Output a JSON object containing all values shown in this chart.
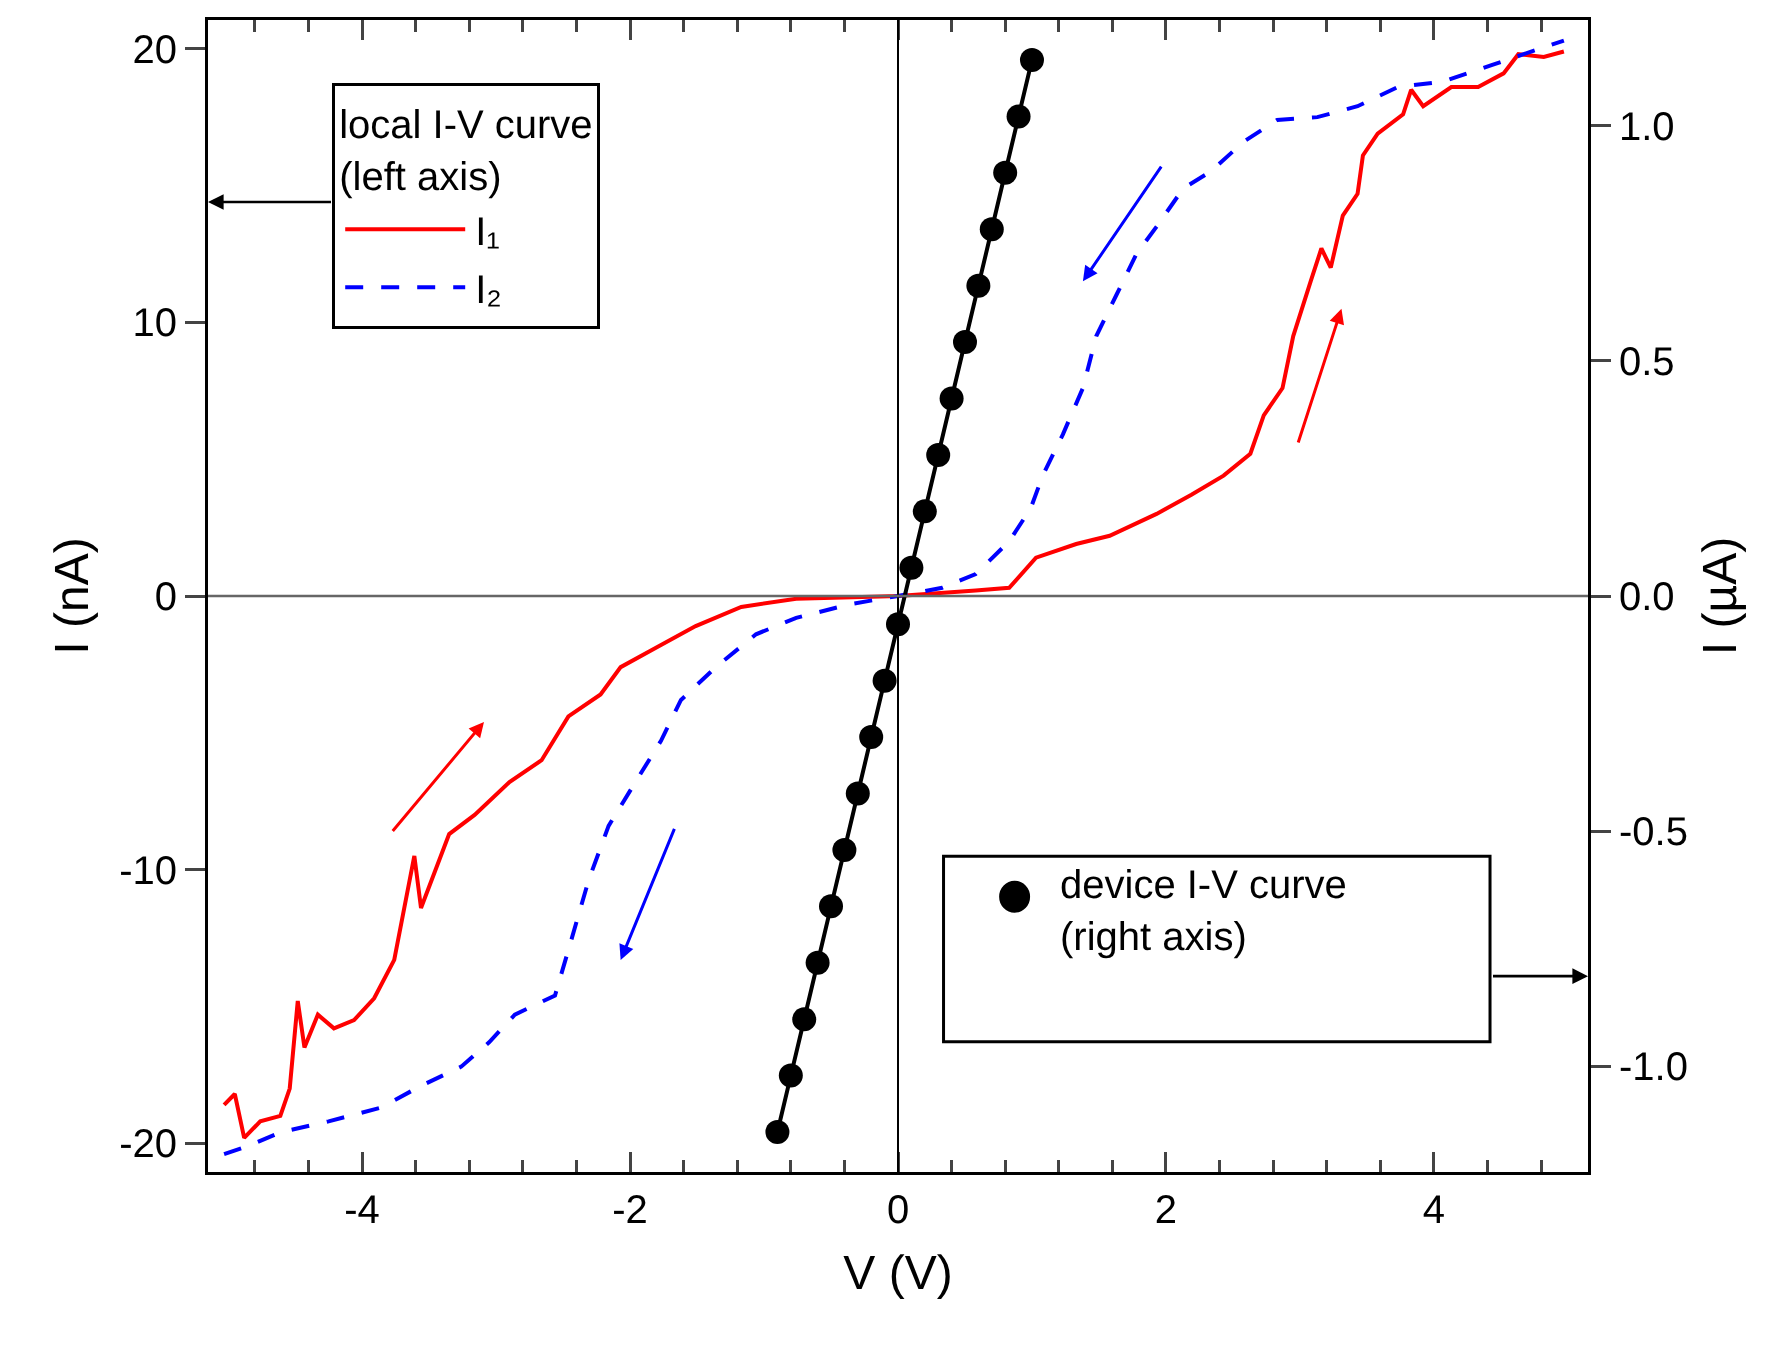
{
  "chart_data": {
    "type": "line",
    "xlabel": "V (V)",
    "ylabel": "I (nA)",
    "y2label": "I (µA)",
    "legend_title": "local I-V curve\n(left axis)",
    "legend": "top left",
    "grid": false,
    "xlim": [
      -5.15,
      5.15
    ],
    "xticks": [
      -4,
      -2,
      0,
      2,
      4
    ],
    "ylim": [
      -21.05,
      21.05
    ],
    "yticks": [
      -20,
      -10,
      0,
      10,
      20
    ],
    "y2lim": [
      -1.225,
      1.225
    ],
    "y2ticks": [
      {
        "value": -1,
        "label": "-1.0"
      },
      -0.5,
      {
        "value": 0,
        "label": "0.0"
      },
      0.5,
      {
        "value": 1,
        "label": "1.0"
      }
    ],
    "ref_lines": [
      {
        "axis": "x",
        "value": 0,
        "color": "#000000"
      },
      {
        "axis": "y",
        "value": 0,
        "color": "#666666"
      }
    ],
    "series": [
      {
        "name": "I₁",
        "color": "#ff0000",
        "line_style": "solid",
        "marker": "none",
        "x": [
          -5.03,
          -4.95,
          -4.88,
          -4.76,
          -4.61,
          -4.54,
          -4.48,
          -4.43,
          -4.33,
          -4.21,
          -4.06,
          -3.91,
          -3.76,
          -3.61,
          -3.56,
          -3.35,
          -3.16,
          -2.9,
          -2.66,
          -2.46,
          -2.22,
          -2.07,
          -1.81,
          -1.51,
          -1.17,
          -0.76,
          -0.27,
          0,
          0.58,
          0.83,
          1.03,
          1.33,
          1.58,
          1.93,
          2.19,
          2.43,
          2.63,
          2.73,
          2.87,
          2.95,
          3.08,
          3.16,
          3.23,
          3.32,
          3.43,
          3.47,
          3.58,
          3.77,
          3.83,
          3.92,
          4.13,
          4.33,
          4.52,
          4.63,
          4.82,
          4.97
        ],
        "values": [
          -18.6,
          -18.2,
          -19.8,
          -19.2,
          -19.0,
          -18.0,
          -14.8,
          -16.5,
          -15.3,
          -15.8,
          -15.5,
          -14.7,
          -13.3,
          -9.5,
          -11.4,
          -8.7,
          -8.0,
          -6.8,
          -6.0,
          -4.4,
          -3.6,
          -2.6,
          -1.9,
          -1.1,
          -0.4,
          -0.1,
          -0.04,
          0,
          0.2,
          0.3,
          1.4,
          1.9,
          2.2,
          3.0,
          3.7,
          4.4,
          5.2,
          6.6,
          7.6,
          9.5,
          11.5,
          12.7,
          12.0,
          13.9,
          14.7,
          16.1,
          16.9,
          17.6,
          18.5,
          17.9,
          18.6,
          18.6,
          19.1,
          19.8,
          19.7,
          19.9
        ]
      },
      {
        "name": "I₂",
        "color": "#0000ff",
        "line_style": "dashed",
        "marker": "none",
        "x": [
          -5.03,
          -4.85,
          -4.61,
          -4.25,
          -3.86,
          -3.56,
          -3.26,
          -3.05,
          -2.86,
          -2.56,
          -2.44,
          -2.31,
          -2.16,
          -1.96,
          -1.77,
          -1.62,
          -1.36,
          -1.06,
          -0.76,
          -0.36,
          0,
          0.33,
          0.58,
          0.83,
          0.99,
          1.08,
          1.23,
          1.38,
          1.48,
          1.63,
          1.78,
          1.93,
          2.13,
          2.33,
          2.58,
          2.83,
          3.13,
          3.43,
          3.73,
          4.07,
          4.43,
          4.67,
          4.97
        ],
        "values": [
          -20.4,
          -20.1,
          -19.6,
          -19.2,
          -18.7,
          -17.9,
          -17.2,
          -16.3,
          -15.3,
          -14.6,
          -12.6,
          -10.4,
          -8.4,
          -6.8,
          -5.3,
          -3.8,
          -2.6,
          -1.4,
          -0.8,
          -0.3,
          0,
          0.3,
          0.8,
          2.0,
          3.2,
          4.4,
          5.9,
          7.6,
          9.5,
          11.0,
          12.5,
          13.5,
          14.9,
          15.5,
          16.6,
          17.4,
          17.5,
          17.9,
          18.6,
          18.8,
          19.4,
          19.8,
          20.3
        ]
      },
      {
        "name": "device I-V curve\n(right axis)",
        "color": "#000000",
        "axis": "y2",
        "line_style": "solid",
        "marker": "circle",
        "x": [
          -0.9,
          -0.8,
          -0.7,
          -0.6,
          -0.5,
          -0.4,
          -0.3,
          -0.2,
          -0.1,
          0,
          0.1,
          0.2,
          0.3,
          0.4,
          0.5,
          0.6,
          0.7,
          0.8,
          0.9,
          1.0
        ],
        "values": [
          -1.14,
          -1.02,
          -0.9,
          -0.78,
          -0.66,
          -0.54,
          -0.42,
          -0.3,
          -0.18,
          -0.06,
          0.06,
          0.18,
          0.3,
          0.42,
          0.54,
          0.66,
          0.78,
          0.9,
          1.02,
          1.14
        ]
      }
    ]
  }
}
